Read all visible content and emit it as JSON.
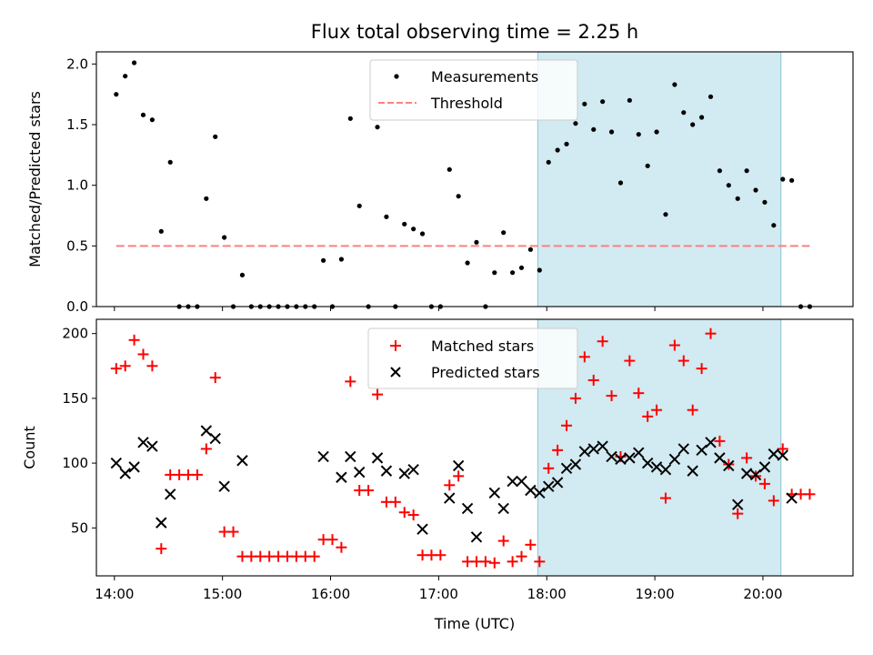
{
  "chart_data": [
    {
      "type": "scatter",
      "title": "Flux total observing time = 2.25 h",
      "ylabel": "Matched/Predicted stars",
      "xlabel": "",
      "xlim": [
        "13:50",
        "20:50"
      ],
      "ylim": [
        0,
        2.1
      ],
      "yticks": [
        "0.0",
        "0.5",
        "1.0",
        "1.5",
        "2.0"
      ],
      "highlight_span": [
        "17:55",
        "20:10"
      ],
      "legend_position": "top-center",
      "series": [
        {
          "name": "Measurements",
          "kind": "point",
          "color": "#000000",
          "points": [
            [
              "14:01",
              1.75
            ],
            [
              "14:06",
              1.9
            ],
            [
              "14:11",
              2.01
            ],
            [
              "14:16",
              1.58
            ],
            [
              "14:21",
              1.54
            ],
            [
              "14:26",
              0.62
            ],
            [
              "14:31",
              1.19
            ],
            [
              "14:36",
              0.0
            ],
            [
              "14:41",
              0.0
            ],
            [
              "14:46",
              0.0
            ],
            [
              "14:51",
              0.89
            ],
            [
              "14:56",
              1.4
            ],
            [
              "15:01",
              0.57
            ],
            [
              "15:06",
              0.0
            ],
            [
              "15:11",
              0.26
            ],
            [
              "15:16",
              0.0
            ],
            [
              "15:21",
              0.0
            ],
            [
              "15:26",
              0.0
            ],
            [
              "15:31",
              0.0
            ],
            [
              "15:36",
              0.0
            ],
            [
              "15:41",
              0.0
            ],
            [
              "15:46",
              0.0
            ],
            [
              "15:51",
              0.0
            ],
            [
              "15:56",
              0.38
            ],
            [
              "16:01",
              0.0
            ],
            [
              "16:06",
              0.39
            ],
            [
              "16:11",
              1.55
            ],
            [
              "16:16",
              0.83
            ],
            [
              "16:21",
              0.0
            ],
            [
              "16:26",
              1.48
            ],
            [
              "16:31",
              0.74
            ],
            [
              "16:36",
              0.0
            ],
            [
              "16:41",
              0.68
            ],
            [
              "16:46",
              0.64
            ],
            [
              "16:51",
              0.6
            ],
            [
              "16:56",
              0.0
            ],
            [
              "17:01",
              0.0
            ],
            [
              "17:06",
              1.13
            ],
            [
              "17:11",
              0.91
            ],
            [
              "17:16",
              0.36
            ],
            [
              "17:21",
              0.53
            ],
            [
              "17:26",
              0.0
            ],
            [
              "17:31",
              0.28
            ],
            [
              "17:36",
              0.61
            ],
            [
              "17:41",
              0.28
            ],
            [
              "17:46",
              0.32
            ],
            [
              "17:51",
              0.47
            ],
            [
              "17:56",
              0.3
            ],
            [
              "18:01",
              1.19
            ],
            [
              "18:06",
              1.29
            ],
            [
              "18:11",
              1.34
            ],
            [
              "18:16",
              1.51
            ],
            [
              "18:21",
              1.67
            ],
            [
              "18:26",
              1.46
            ],
            [
              "18:31",
              1.69
            ],
            [
              "18:36",
              1.44
            ],
            [
              "18:41",
              1.02
            ],
            [
              "18:46",
              1.7
            ],
            [
              "18:51",
              1.42
            ],
            [
              "18:56",
              1.16
            ],
            [
              "19:01",
              1.44
            ],
            [
              "19:06",
              0.76
            ],
            [
              "19:11",
              1.83
            ],
            [
              "19:16",
              1.6
            ],
            [
              "19:21",
              1.5
            ],
            [
              "19:26",
              1.56
            ],
            [
              "19:31",
              1.73
            ],
            [
              "19:36",
              1.12
            ],
            [
              "19:41",
              1.0
            ],
            [
              "19:46",
              0.89
            ],
            [
              "19:51",
              1.12
            ],
            [
              "19:56",
              0.96
            ],
            [
              "20:01",
              0.86
            ],
            [
              "20:06",
              0.67
            ],
            [
              "20:11",
              1.05
            ],
            [
              "20:16",
              1.04
            ],
            [
              "20:21",
              0.0
            ],
            [
              "20:26",
              0.0
            ]
          ]
        },
        {
          "name": "Threshold",
          "kind": "dashed-line",
          "color": "#ff7f7f",
          "points": [
            [
              "14:01",
              0.5
            ],
            [
              "20:26",
              0.5
            ]
          ]
        }
      ]
    },
    {
      "type": "scatter",
      "title": "",
      "ylabel": "Count",
      "xlabel": "Time (UTC)",
      "xlim": [
        "13:50",
        "20:50"
      ],
      "ylim": [
        13,
        211
      ],
      "yticks": [
        "50",
        "100",
        "150",
        "200"
      ],
      "xticks": [
        "14:00",
        "15:00",
        "16:00",
        "17:00",
        "18:00",
        "19:00",
        "20:00"
      ],
      "highlight_span": [
        "17:55",
        "20:10"
      ],
      "legend_position": "top-center",
      "series": [
        {
          "name": "Matched stars",
          "kind": "plus",
          "color": "#ff0000",
          "points": [
            [
              "14:01",
              173
            ],
            [
              "14:06",
              175
            ],
            [
              "14:11",
              195
            ],
            [
              "14:16",
              184
            ],
            [
              "14:21",
              175
            ],
            [
              "14:26",
              34
            ],
            [
              "14:31",
              91
            ],
            [
              "14:36",
              91
            ],
            [
              "14:41",
              91
            ],
            [
              "14:46",
              91
            ],
            [
              "14:51",
              111
            ],
            [
              "14:56",
              166
            ],
            [
              "15:01",
              47
            ],
            [
              "15:06",
              47
            ],
            [
              "15:11",
              28
            ],
            [
              "15:16",
              28
            ],
            [
              "15:21",
              28
            ],
            [
              "15:26",
              28
            ],
            [
              "15:31",
              28
            ],
            [
              "15:36",
              28
            ],
            [
              "15:41",
              28
            ],
            [
              "15:46",
              28
            ],
            [
              "15:51",
              28
            ],
            [
              "15:56",
              41
            ],
            [
              "16:01",
              41
            ],
            [
              "16:06",
              35
            ],
            [
              "16:11",
              163
            ],
            [
              "16:16",
              79
            ],
            [
              "16:21",
              79
            ],
            [
              "16:26",
              153
            ],
            [
              "16:31",
              70
            ],
            [
              "16:36",
              70
            ],
            [
              "16:41",
              62
            ],
            [
              "16:46",
              60
            ],
            [
              "16:51",
              29
            ],
            [
              "16:56",
              29
            ],
            [
              "17:01",
              29
            ],
            [
              "17:06",
              83
            ],
            [
              "17:11",
              90
            ],
            [
              "17:16",
              24
            ],
            [
              "17:21",
              24
            ],
            [
              "17:26",
              24
            ],
            [
              "17:31",
              23
            ],
            [
              "17:36",
              40
            ],
            [
              "17:41",
              24
            ],
            [
              "17:46",
              28
            ],
            [
              "17:51",
              37
            ],
            [
              "17:56",
              24
            ],
            [
              "18:01",
              96
            ],
            [
              "18:06",
              110
            ],
            [
              "18:11",
              129
            ],
            [
              "18:16",
              150
            ],
            [
              "18:21",
              182
            ],
            [
              "18:26",
              164
            ],
            [
              "18:31",
              194
            ],
            [
              "18:36",
              152
            ],
            [
              "18:41",
              105
            ],
            [
              "18:46",
              179
            ],
            [
              "18:51",
              154
            ],
            [
              "18:56",
              136
            ],
            [
              "19:01",
              141
            ],
            [
              "19:06",
              73
            ],
            [
              "19:11",
              191
            ],
            [
              "19:16",
              179
            ],
            [
              "19:21",
              141
            ],
            [
              "19:26",
              173
            ],
            [
              "19:31",
              200
            ],
            [
              "19:36",
              117
            ],
            [
              "19:41",
              99
            ],
            [
              "19:46",
              61
            ],
            [
              "19:51",
              104
            ],
            [
              "19:56",
              90
            ],
            [
              "20:01",
              84
            ],
            [
              "20:06",
              71
            ],
            [
              "20:11",
              111
            ],
            [
              "20:16",
              76
            ],
            [
              "20:21",
              76
            ],
            [
              "20:26",
              76
            ]
          ]
        },
        {
          "name": "Predicted stars",
          "kind": "x",
          "color": "#000000",
          "points": [
            [
              "14:01",
              100
            ],
            [
              "14:06",
              92
            ],
            [
              "14:11",
              97
            ],
            [
              "14:16",
              116
            ],
            [
              "14:21",
              113
            ],
            [
              "14:26",
              54
            ],
            [
              "14:31",
              76
            ],
            [
              "14:51",
              125
            ],
            [
              "14:56",
              119
            ],
            [
              "15:01",
              82
            ],
            [
              "15:11",
              102
            ],
            [
              "15:56",
              105
            ],
            [
              "16:06",
              89
            ],
            [
              "16:11",
              105
            ],
            [
              "16:16",
              93
            ],
            [
              "16:26",
              104
            ],
            [
              "16:31",
              94
            ],
            [
              "16:41",
              92
            ],
            [
              "16:46",
              95
            ],
            [
              "16:51",
              49
            ],
            [
              "17:06",
              73
            ],
            [
              "17:11",
              98
            ],
            [
              "17:16",
              65
            ],
            [
              "17:21",
              43
            ],
            [
              "17:31",
              77
            ],
            [
              "17:36",
              65
            ],
            [
              "17:41",
              86
            ],
            [
              "17:46",
              86
            ],
            [
              "17:51",
              79
            ],
            [
              "17:56",
              77
            ],
            [
              "18:01",
              82
            ],
            [
              "18:06",
              85
            ],
            [
              "18:11",
              96
            ],
            [
              "18:16",
              99
            ],
            [
              "18:21",
              109
            ],
            [
              "18:26",
              111
            ],
            [
              "18:31",
              113
            ],
            [
              "18:36",
              105
            ],
            [
              "18:41",
              103
            ],
            [
              "18:46",
              104
            ],
            [
              "18:51",
              108
            ],
            [
              "18:56",
              100
            ],
            [
              "19:01",
              97
            ],
            [
              "19:06",
              95
            ],
            [
              "19:11",
              103
            ],
            [
              "19:16",
              111
            ],
            [
              "19:21",
              94
            ],
            [
              "19:26",
              110
            ],
            [
              "19:31",
              116
            ],
            [
              "19:36",
              104
            ],
            [
              "19:41",
              98
            ],
            [
              "19:46",
              68
            ],
            [
              "19:51",
              92
            ],
            [
              "19:56",
              91
            ],
            [
              "20:01",
              97
            ],
            [
              "20:06",
              107
            ],
            [
              "20:11",
              106
            ],
            [
              "20:16",
              73
            ]
          ]
        }
      ]
    }
  ]
}
